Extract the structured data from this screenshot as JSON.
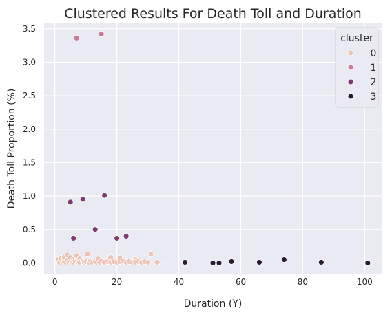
{
  "chart_data": {
    "type": "scatter",
    "title": "Clustered Results For Death Toll and Duration",
    "xlabel": "Duration (Y)",
    "ylabel": "Death Toll Proportion (%)",
    "xlim": [
      -3.5,
      105.5
    ],
    "ylim": [
      -0.16,
      3.58
    ],
    "xticks": [
      0,
      20,
      40,
      60,
      80,
      100
    ],
    "yticks": [
      0.0,
      0.5,
      1.0,
      1.5,
      2.0,
      2.5,
      3.0,
      3.5
    ],
    "xtick_labels": [
      "0",
      "20",
      "40",
      "60",
      "80",
      "100"
    ],
    "ytick_labels": [
      "0.0",
      "0.5",
      "1.0",
      "1.5",
      "2.0",
      "2.5",
      "3.0",
      "3.5"
    ],
    "grid": true,
    "legend": {
      "title": "cluster",
      "placement": "top-right"
    },
    "series": [
      {
        "name": "0",
        "color": "#ecc4b6",
        "x": [
          1,
          1.5,
          2,
          2.5,
          3,
          3,
          3.5,
          4,
          4,
          4.5,
          5,
          5,
          5.5,
          6,
          6,
          6.5,
          7,
          7,
          7.5,
          8,
          8,
          9,
          9.5,
          10,
          10.5,
          11,
          11.5,
          12,
          13,
          13.5,
          14,
          14.5,
          15,
          16,
          17,
          18,
          18,
          19,
          20,
          21,
          21,
          22,
          23,
          24,
          25,
          26,
          26,
          27,
          28,
          29,
          30,
          31,
          33
        ],
        "y": [
          0.05,
          0.01,
          0.07,
          0.01,
          0.09,
          0.02,
          0.01,
          0.12,
          0.04,
          0.01,
          0.08,
          0.02,
          0.01,
          0.05,
          0.01,
          0.03,
          0.11,
          0.02,
          0.01,
          0.06,
          0.01,
          0.03,
          0.01,
          0.02,
          0.13,
          0.01,
          0.03,
          0.01,
          0.02,
          0.01,
          0.06,
          0.01,
          0.03,
          0.01,
          0.02,
          0.08,
          0.01,
          0.02,
          0.01,
          0.07,
          0.02,
          0.03,
          0.01,
          0.02,
          0.01,
          0.05,
          0.01,
          0.02,
          0.01,
          0.02,
          0.01,
          0.13,
          0.01
        ]
      },
      {
        "name": "1",
        "color": "#c87a99",
        "x": [
          7,
          15
        ],
        "y": [
          3.36,
          3.42
        ]
      },
      {
        "name": "2",
        "color": "#7d3c6f",
        "x": [
          5,
          6,
          9,
          13,
          16,
          20,
          23
        ],
        "y": [
          0.91,
          0.37,
          0.95,
          0.5,
          1.01,
          0.37,
          0.4
        ]
      },
      {
        "name": "3",
        "color": "#2a1a34",
        "x": [
          42,
          51,
          53,
          57,
          66,
          74,
          86,
          101
        ],
        "y": [
          0.01,
          0.0,
          0.0,
          0.02,
          0.01,
          0.05,
          0.01,
          0.0
        ]
      }
    ]
  }
}
